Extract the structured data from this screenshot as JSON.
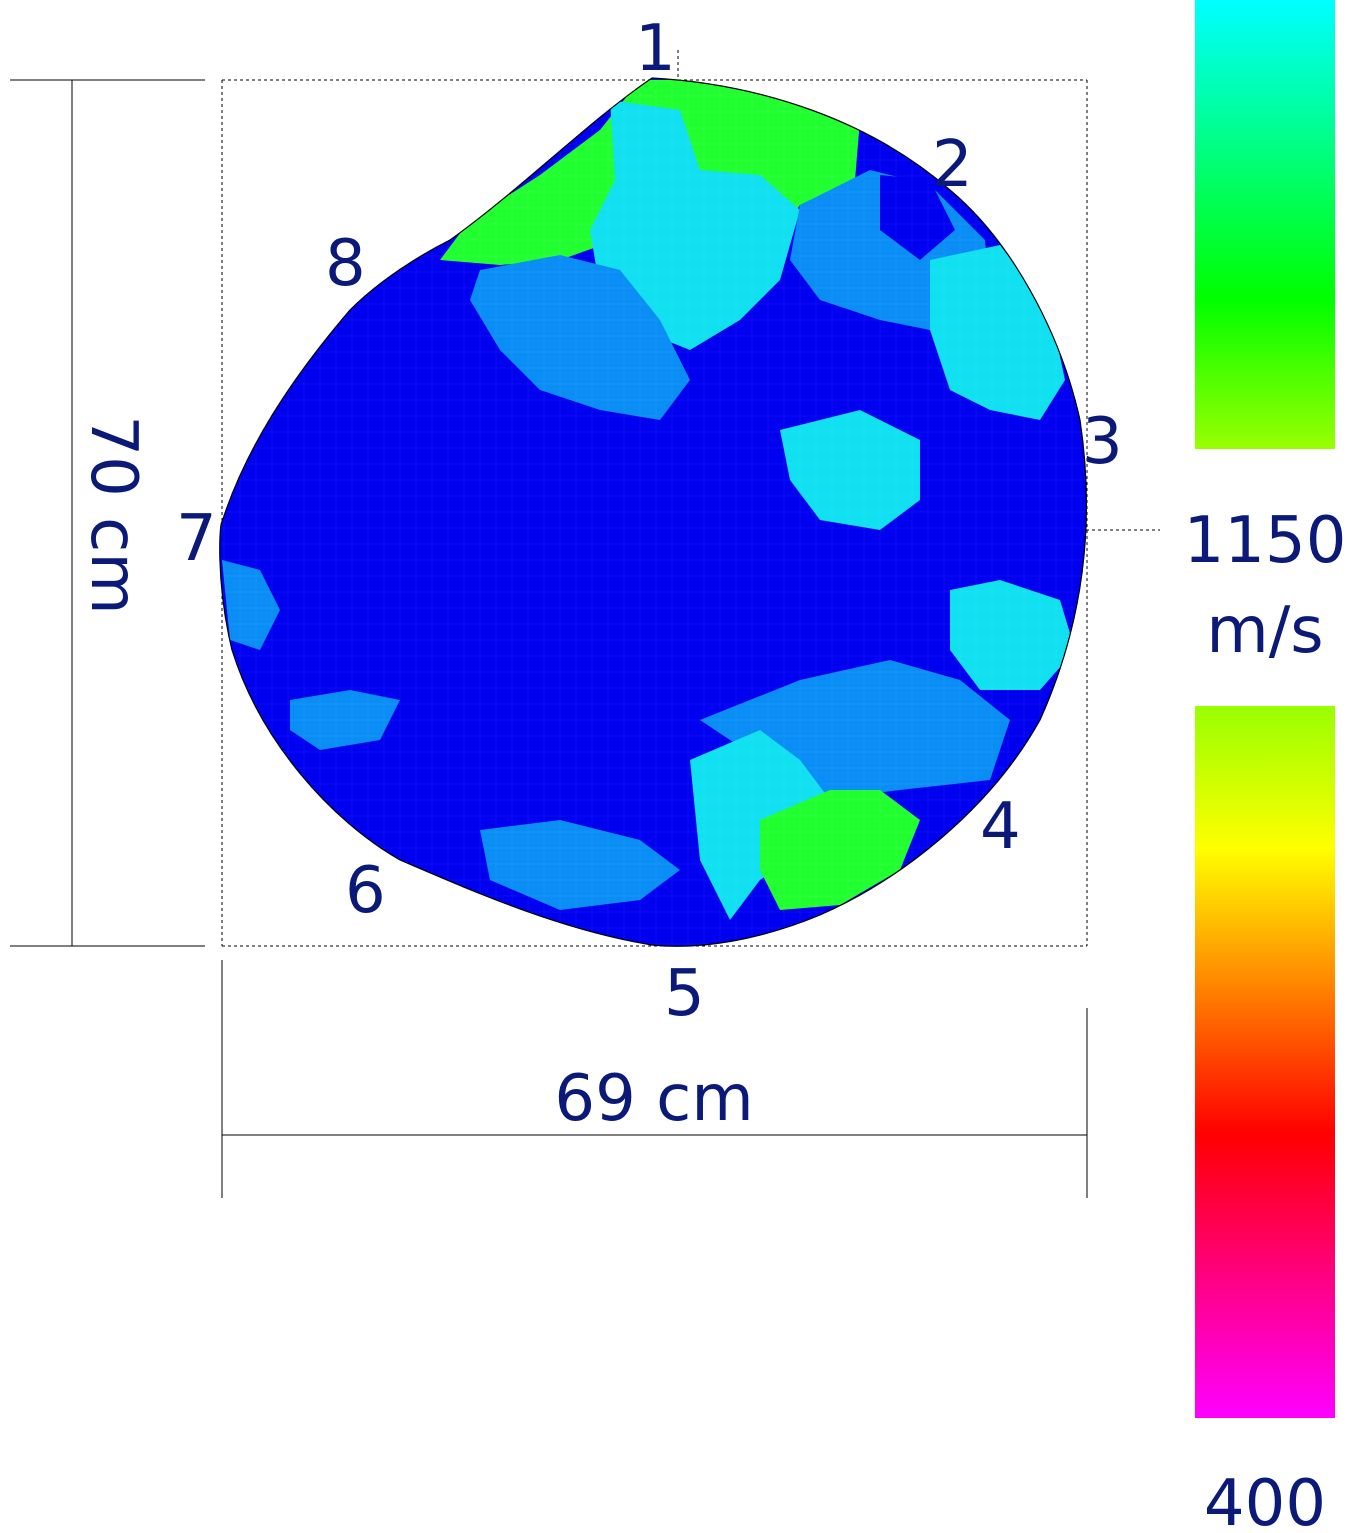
{
  "sensors": [
    {
      "id": "sensor-1",
      "label": "1"
    },
    {
      "id": "sensor-2",
      "label": "2"
    },
    {
      "id": "sensor-3",
      "label": "3"
    },
    {
      "id": "sensor-4",
      "label": "4"
    },
    {
      "id": "sensor-5",
      "label": "5"
    },
    {
      "id": "sensor-6",
      "label": "6"
    },
    {
      "id": "sensor-7",
      "label": "7"
    },
    {
      "id": "sensor-8",
      "label": "8"
    }
  ],
  "dimensions": {
    "width_label": "69 cm",
    "height_label": "70 cm"
  },
  "scale": {
    "upper_value": "1150",
    "unit": "m/s",
    "lower_value": "400",
    "upper_gradient": [
      "#00ffff",
      "#00ff80",
      "#00ff00",
      "#99ff00"
    ],
    "lower_gradient": [
      "#99ff00",
      "#ffff00",
      "#ff8000",
      "#ff0000",
      "#ff0080",
      "#ff00ff"
    ]
  },
  "colors": {
    "label_text": "#0b1a78",
    "blue": "#0000f0",
    "light_blue": "#0a8ef5",
    "cyan": "#10e0f0",
    "green": "#22ff30",
    "outline": "#000000"
  },
  "regions": [
    {
      "name": "region-top-left-green",
      "color": "green"
    },
    {
      "name": "region-top-cyan",
      "color": "cyan"
    },
    {
      "name": "region-top-right-light-blue",
      "color": "light_blue"
    },
    {
      "name": "region-upper-center-light-blue",
      "color": "light_blue"
    },
    {
      "name": "region-right-cyan",
      "color": "cyan"
    },
    {
      "name": "region-center-cyan",
      "color": "cyan"
    },
    {
      "name": "region-right-mid-cyan",
      "color": "cyan"
    },
    {
      "name": "region-lower-right-light-blue",
      "color": "light_blue"
    },
    {
      "name": "region-lower-right-cyan",
      "color": "cyan"
    },
    {
      "name": "region-lower-right-green",
      "color": "green"
    },
    {
      "name": "region-bottom-light-blue",
      "color": "light_blue"
    },
    {
      "name": "region-left-light-blue",
      "color": "light_blue"
    },
    {
      "name": "region-lower-left-light-blue",
      "color": "light_blue"
    },
    {
      "name": "region-top-right-blue-spot",
      "color": "blue"
    },
    {
      "name": "region-right-blue-spot",
      "color": "blue"
    },
    {
      "name": "region-upper-right-blue-spot",
      "color": "blue"
    }
  ]
}
